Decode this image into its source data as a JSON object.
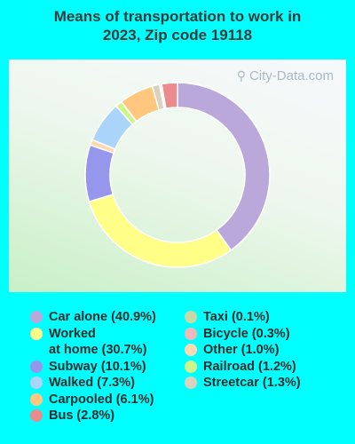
{
  "title": {
    "line1": "Means of transportation to work in",
    "line2": "2023, Zip code 19118"
  },
  "watermark": {
    "text": "City-Data.com",
    "icon": "magnifier-icon"
  },
  "colors": {
    "background": "#00FFFF"
  },
  "chart_data": {
    "type": "pie",
    "variant": "donut",
    "title": "Means of transportation to work in 2023, Zip code 19118",
    "start_angle_deg": 0,
    "direction": "clockwise",
    "series": [
      {
        "name": "Car alone",
        "value": 40.9,
        "label": "Car alone (40.9%)",
        "color": "#BBA8DB"
      },
      {
        "name": "Worked at home",
        "value": 30.7,
        "label": "Worked at home (30.7%)",
        "label_lines": [
          "Worked",
          "at home (30.7%)"
        ],
        "color": "#FFFF88"
      },
      {
        "name": "Subway",
        "value": 10.1,
        "label": "Subway (10.1%)",
        "color": "#9596EC"
      },
      {
        "name": "Other",
        "value": 1.0,
        "label": "Other (1.0%)",
        "color": "#FFD8B0"
      },
      {
        "name": "Walked",
        "value": 7.3,
        "label": "Walked (7.3%)",
        "color": "#ABD4FA"
      },
      {
        "name": "Railroad",
        "value": 1.2,
        "label": "Railroad (1.2%)",
        "color": "#CEF58B"
      },
      {
        "name": "Carpooled",
        "value": 6.1,
        "label": "Carpooled (6.1%)",
        "color": "#FFC77D"
      },
      {
        "name": "Streetcar",
        "value": 1.3,
        "label": "Streetcar (1.3%)",
        "color": "#D9D2BC"
      },
      {
        "name": "Taxi",
        "value": 0.1,
        "label": "Taxi (0.1%)",
        "color": "#C6D8A6"
      },
      {
        "name": "Bicycle",
        "value": 0.3,
        "label": "Bicycle (0.3%)",
        "color": "#F0B8B8"
      },
      {
        "name": "Bus",
        "value": 2.8,
        "label": "Bus (2.8%)",
        "color": "#EB8B8B"
      }
    ]
  },
  "legend": {
    "left": [
      {
        "key": "Car alone",
        "lines": [
          "Car alone (40.9%)"
        ],
        "color": "#BBA8DB"
      },
      {
        "key": "Worked at home",
        "lines": [
          "Worked",
          "at home (30.7%)"
        ],
        "color": "#FFFF88"
      },
      {
        "key": "Subway",
        "lines": [
          "Subway (10.1%)"
        ],
        "color": "#9596EC"
      },
      {
        "key": "Walked",
        "lines": [
          "Walked (7.3%)"
        ],
        "color": "#ABD4FA"
      },
      {
        "key": "Carpooled",
        "lines": [
          "Carpooled (6.1%)"
        ],
        "color": "#FFC77D"
      },
      {
        "key": "Bus",
        "lines": [
          "Bus (2.8%)"
        ],
        "color": "#EB8B8B"
      }
    ],
    "right": [
      {
        "key": "Taxi",
        "lines": [
          "Taxi (0.1%)"
        ],
        "color": "#C6D8A6"
      },
      {
        "key": "Bicycle",
        "lines": [
          "Bicycle (0.3%)"
        ],
        "color": "#F0B8B8"
      },
      {
        "key": "Other",
        "lines": [
          "Other (1.0%)"
        ],
        "color": "#FFD8B0"
      },
      {
        "key": "Railroad",
        "lines": [
          "Railroad (1.2%)"
        ],
        "color": "#CEF58B"
      },
      {
        "key": "Streetcar",
        "lines": [
          "Streetcar (1.3%)"
        ],
        "color": "#D9D2BC"
      }
    ]
  }
}
